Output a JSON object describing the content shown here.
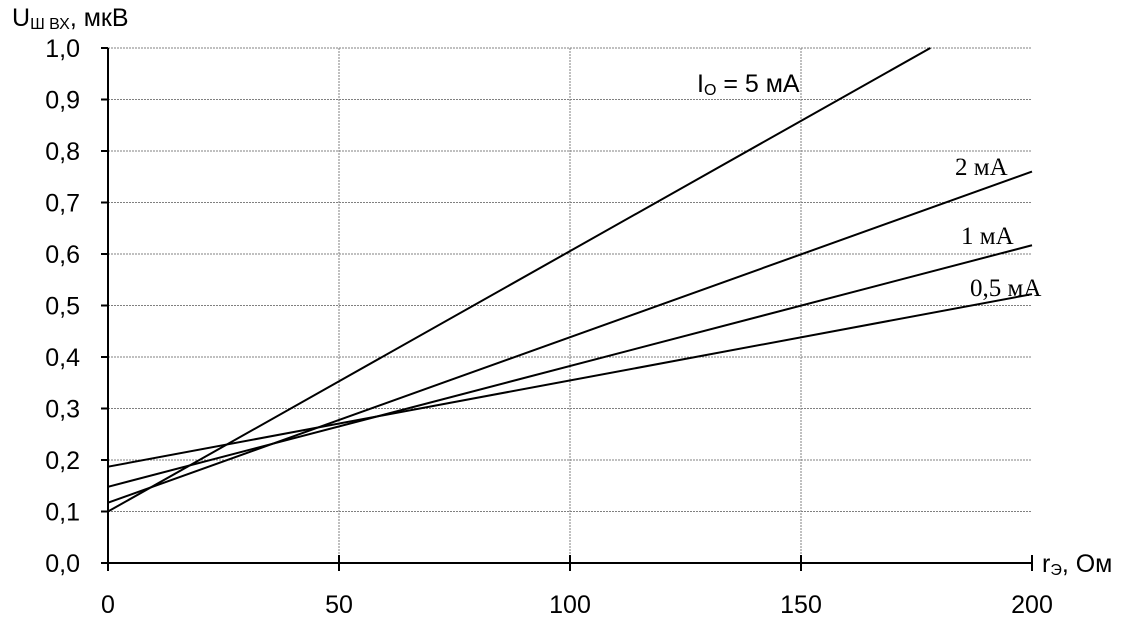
{
  "chart_data": {
    "type": "line",
    "ylabel": {
      "main": "U",
      "sub": "Ш ВХ",
      "suffix": ", мкВ"
    },
    "xlabel": {
      "main": "r",
      "sub": "Э",
      "suffix": ", Ом"
    },
    "xlim": [
      0,
      200
    ],
    "ylim": [
      0,
      1.0
    ],
    "x_ticks": [
      "0",
      "50",
      "100",
      "150",
      "200"
    ],
    "x_tick_values": [
      0,
      50,
      100,
      150,
      200
    ],
    "y_ticks": [
      "0,0",
      "0,1",
      "0,2",
      "0,3",
      "0,4",
      "0,5",
      "0,6",
      "0,7",
      "0,8",
      "0,9",
      "1,0"
    ],
    "y_tick_values": [
      0,
      0.1,
      0.2,
      0.3,
      0.4,
      0.5,
      0.6,
      0.7,
      0.8,
      0.9,
      1.0
    ],
    "grid": true,
    "series": [
      {
        "label": {
          "main": "I",
          "sub": "O",
          "suffix": " = 5 мА"
        },
        "x": [
          0,
          178
        ],
        "y": [
          0.1,
          1.0
        ],
        "label_font": "sans"
      },
      {
        "label": {
          "main": "2 мА",
          "sub": "",
          "suffix": ""
        },
        "x": [
          0,
          200
        ],
        "y": [
          0.117,
          0.76
        ],
        "label_font": "serif"
      },
      {
        "label": {
          "main": "1 мА",
          "sub": "",
          "suffix": ""
        },
        "x": [
          0,
          200
        ],
        "y": [
          0.148,
          0.617
        ],
        "label_font": "serif"
      },
      {
        "label": {
          "main": "0,5 мА",
          "sub": "",
          "suffix": ""
        },
        "x": [
          0,
          200
        ],
        "y": [
          0.187,
          0.522
        ],
        "label_font": "serif"
      }
    ]
  }
}
